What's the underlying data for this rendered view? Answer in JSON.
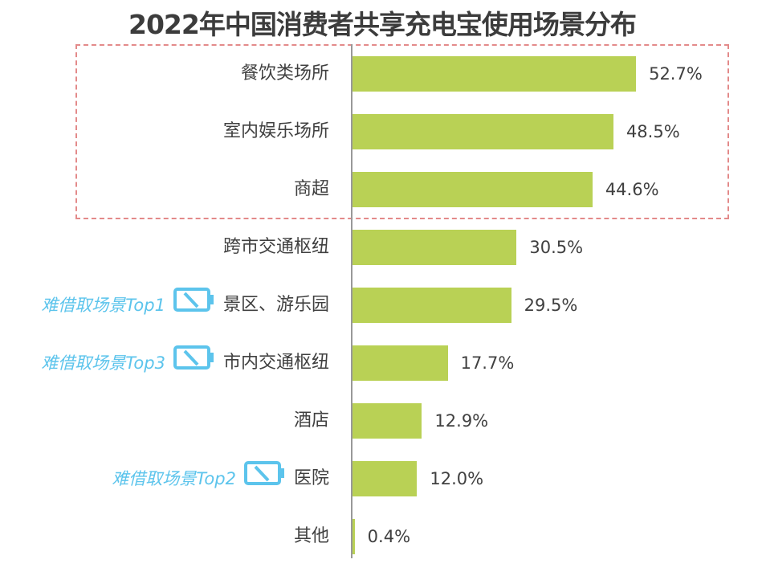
{
  "chart_data": {
    "type": "bar",
    "orientation": "horizontal",
    "title": "2022年中国消费者共享充电宝使用场景分布",
    "categories": [
      "餐饮类场所",
      "室内娱乐场所",
      "商超",
      "跨市交通枢纽",
      "景区、游乐园",
      "市内交通枢纽",
      "酒店",
      "医院",
      "其他"
    ],
    "values": [
      52.7,
      48.5,
      44.6,
      30.5,
      29.5,
      17.7,
      12.9,
      12.0,
      0.4
    ],
    "value_labels": [
      "52.7%",
      "48.5%",
      "44.6%",
      "30.5%",
      "29.5%",
      "17.7%",
      "12.9%",
      "12.0%",
      "0.4%"
    ],
    "unit": "%",
    "highlighted_categories": [
      "餐饮类场所",
      "室内娱乐场所",
      "商超"
    ],
    "annotations": [
      {
        "category": "景区、游乐园",
        "text": "难借取场景Top1",
        "icon": "low-battery-icon"
      },
      {
        "category": "市内交通枢纽",
        "text": "难借取场景Top3",
        "icon": "low-battery-icon"
      },
      {
        "category": "医院",
        "text": "难借取场景Top2",
        "icon": "low-battery-icon"
      }
    ],
    "grid": false,
    "legend": "none",
    "colors": {
      "bar": "#b9d155",
      "annotation": "#5cc4ec",
      "highlight_box": "#e38a8a",
      "text": "#404040"
    }
  }
}
